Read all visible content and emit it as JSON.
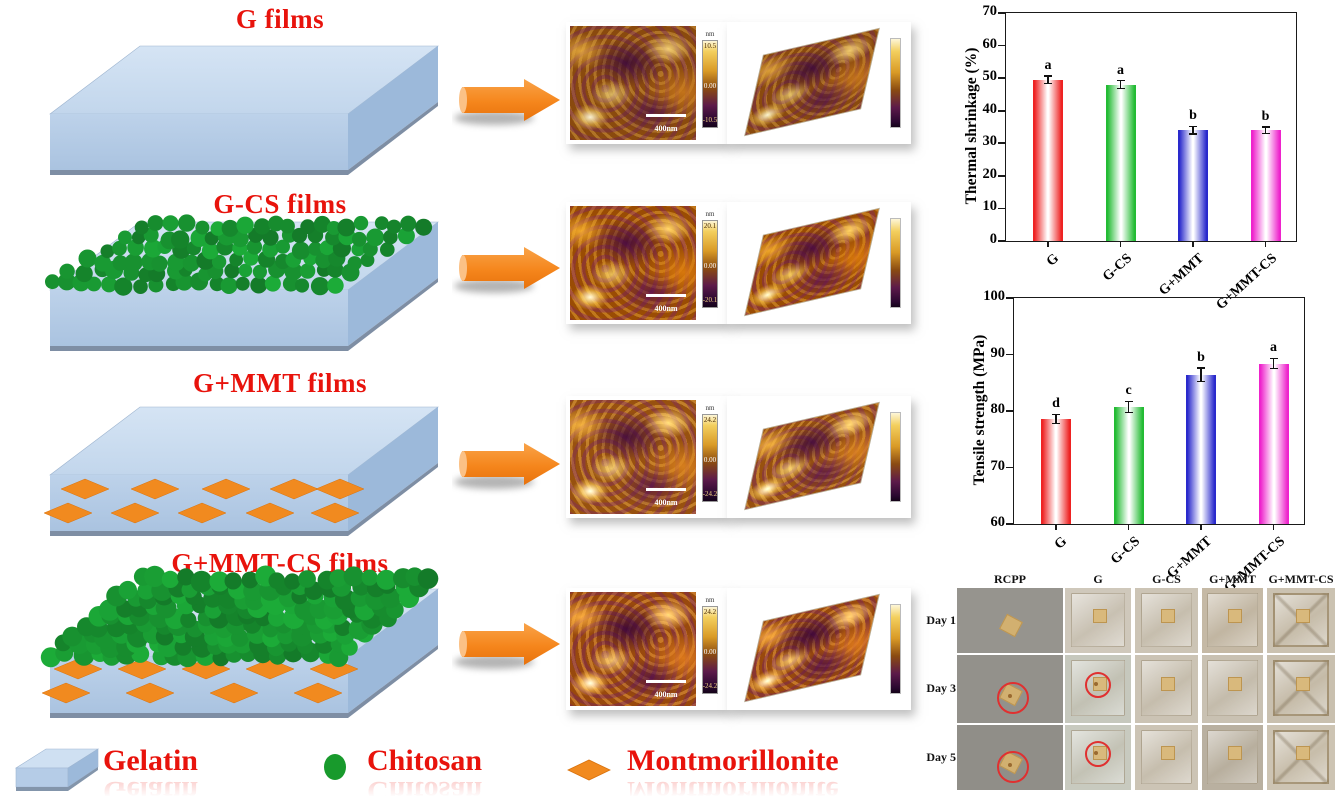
{
  "figure": {
    "background": "#ffffff"
  },
  "films": [
    {
      "title": "G films",
      "layers": {
        "chitosan": false,
        "mmt": false
      }
    },
    {
      "title": "G-CS films",
      "layers": {
        "chitosan": true,
        "mmt": false
      }
    },
    {
      "title": "G+MMT films",
      "layers": {
        "chitosan": false,
        "mmt": true
      }
    },
    {
      "title": "G+MMT-CS films",
      "layers": {
        "chitosan": true,
        "mmt": true
      }
    }
  ],
  "afm": [
    {
      "film": "G",
      "colorbar_unit": "nm",
      "colorbar_max": "10.5",
      "colorbar_mid": "0.00",
      "colorbar_min": "-10.5",
      "scale_bar": "400nm"
    },
    {
      "film": "G-CS",
      "colorbar_unit": "nm",
      "colorbar_max": "20.1",
      "colorbar_mid": "0.00",
      "colorbar_min": "-20.1",
      "scale_bar": "400nm"
    },
    {
      "film": "G+MMT",
      "colorbar_unit": "nm",
      "colorbar_max": "24.2",
      "colorbar_mid": "0.00",
      "colorbar_min": "-24.2",
      "scale_bar": "400nm"
    },
    {
      "film": "G+MMT-CS",
      "colorbar_unit": "nm",
      "colorbar_max": "24.2",
      "colorbar_mid": "0.00",
      "colorbar_min": "-24.2",
      "scale_bar": "400nm"
    }
  ],
  "chart_data": [
    {
      "type": "bar",
      "title": "",
      "ylabel": "Thermal shrinkage (%)",
      "xlabel": "",
      "categories": [
        "G",
        "G-CS",
        "G+MMT",
        "G+MMT-CS"
      ],
      "values": [
        49.5,
        48.0,
        34.0,
        34.0
      ],
      "errors": [
        1.2,
        1.2,
        1.2,
        1.0
      ],
      "sig_letters": [
        "a",
        "a",
        "b",
        "b"
      ],
      "ylim": [
        0,
        70
      ],
      "ytick_step": 10,
      "bar_colors": [
        "#ee2222",
        "#22bb33",
        "#2929cc",
        "#ee22cc"
      ],
      "grid": false,
      "legend_position": "none"
    },
    {
      "type": "bar",
      "title": "",
      "ylabel": "Tensile strength (MPa)",
      "xlabel": "",
      "categories": [
        "G",
        "G-CS",
        "G+MMT",
        "G+MMT-CS"
      ],
      "values": [
        78.6,
        80.7,
        86.4,
        88.4
      ],
      "errors": [
        0.8,
        1.0,
        1.2,
        0.9
      ],
      "sig_letters": [
        "d",
        "c",
        "b",
        "a"
      ],
      "ylim": [
        60,
        100
      ],
      "ytick_step": 10,
      "bar_colors": [
        "#ee2222",
        "#22bb33",
        "#2929cc",
        "#ee22cc"
      ],
      "grid": false,
      "legend_position": "none"
    }
  ],
  "storage_test": {
    "columns": [
      "RCPP",
      "G",
      "G-CS",
      "G+MMT",
      "G+MMT-CS"
    ],
    "rows": [
      "Day 1",
      "Day 3",
      "Day 5"
    ],
    "circled_cells": [
      {
        "row": "Day 3",
        "col": "RCPP"
      },
      {
        "row": "Day 3",
        "col": "G"
      },
      {
        "row": "Day 5",
        "col": "RCPP"
      },
      {
        "row": "Day 5",
        "col": "G"
      }
    ]
  },
  "legend": {
    "items": [
      {
        "name": "gelatin",
        "label": "Gelatin"
      },
      {
        "name": "chitosan",
        "label": "Chitosan"
      },
      {
        "name": "montmorillonite",
        "label": "Montmorillonite"
      }
    ]
  },
  "colors": {
    "title_red": "#e8130c",
    "slab_top": "#cfe0f2",
    "slab_front": "#b5cce7",
    "slab_side": "#9cb9da",
    "chitosan_green": "#189a2c",
    "mmt_orange": "#f18a1f",
    "arrow_orange": "#f5861c",
    "marker_red": "#e03030"
  }
}
